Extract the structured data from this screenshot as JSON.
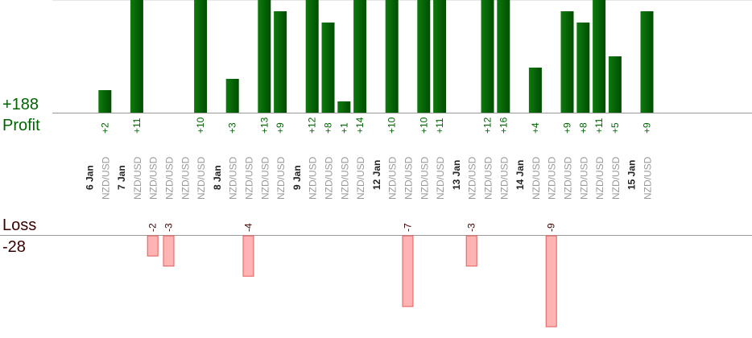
{
  "summary": {
    "profit_total": "+188",
    "profit_label": "Profit",
    "loss_label": "Loss",
    "loss_total": "-28"
  },
  "colors": {
    "profit_bar": "#0b6b0b",
    "profit_bar_dark": "#004d00",
    "profit_text": "#006400",
    "loss_bar": "#ffb3b3",
    "loss_bar_border": "#e05b5b",
    "loss_text": "#3a0000",
    "axis_line": "#888888",
    "date_text": "#222222",
    "instrument_text": "#999999"
  },
  "chart_data": {
    "type": "bar",
    "ylim_profit": [
      0,
      10
    ],
    "ylim_loss": [
      0,
      9
    ],
    "slots": [
      {
        "date": "6 Jan",
        "instrument": "",
        "profit": null,
        "loss": null
      },
      {
        "date": "",
        "instrument": "NZD/USD",
        "profit": 2,
        "label": "+2",
        "loss": null
      },
      {
        "date": "7 Jan",
        "instrument": "",
        "profit": null,
        "loss": null
      },
      {
        "date": "",
        "instrument": "NZD/USD",
        "profit": 11,
        "label": "+11",
        "loss": null
      },
      {
        "date": "",
        "instrument": "NZD/USD",
        "profit": null,
        "loss": 2,
        "label": "-2"
      },
      {
        "date": "",
        "instrument": "NZD/USD",
        "profit": null,
        "loss": 3,
        "label": "-3"
      },
      {
        "date": "",
        "instrument": "NZD/USD",
        "profit": null,
        "loss": null
      },
      {
        "date": "",
        "instrument": "NZD/USD",
        "profit": 10,
        "label": "+10",
        "loss": null
      },
      {
        "date": "8 Jan",
        "instrument": "",
        "profit": null,
        "loss": null
      },
      {
        "date": "",
        "instrument": "NZD/USD",
        "profit": 3,
        "label": "+3",
        "loss": null
      },
      {
        "date": "",
        "instrument": "NZD/USD",
        "profit": null,
        "loss": 4,
        "label": "-4"
      },
      {
        "date": "",
        "instrument": "NZD/USD",
        "profit": 13,
        "label": "+13",
        "loss": null
      },
      {
        "date": "",
        "instrument": "NZD/USD",
        "profit": 9,
        "label": "+9",
        "loss": null
      },
      {
        "date": "9 Jan",
        "instrument": "",
        "profit": null,
        "loss": null
      },
      {
        "date": "",
        "instrument": "NZD/USD",
        "profit": 12,
        "label": "+12",
        "loss": null
      },
      {
        "date": "",
        "instrument": "NZD/USD",
        "profit": 8,
        "label": "+8",
        "loss": null
      },
      {
        "date": "",
        "instrument": "NZD/USD",
        "profit": 1,
        "label": "+1",
        "loss": null
      },
      {
        "date": "",
        "instrument": "NZD/USD",
        "profit": 14,
        "label": "+14",
        "loss": null
      },
      {
        "date": "12 Jan",
        "instrument": "",
        "profit": null,
        "loss": null
      },
      {
        "date": "",
        "instrument": "NZD/USD",
        "profit": 10,
        "label": "+10",
        "loss": null
      },
      {
        "date": "",
        "instrument": "NZD/USD",
        "profit": null,
        "loss": 7,
        "label": "-7"
      },
      {
        "date": "",
        "instrument": "NZD/USD",
        "profit": 10,
        "label": "+10",
        "loss": null
      },
      {
        "date": "",
        "instrument": "NZD/USD",
        "profit": 11,
        "label": "+11",
        "loss": null
      },
      {
        "date": "13 Jan",
        "instrument": "",
        "profit": null,
        "loss": null
      },
      {
        "date": "",
        "instrument": "NZD/USD",
        "profit": null,
        "loss": 3,
        "label": "-3"
      },
      {
        "date": "",
        "instrument": "NZD/USD",
        "profit": 12,
        "label": "+12",
        "loss": null
      },
      {
        "date": "",
        "instrument": "NZD/USD",
        "profit": 16,
        "label": "+16",
        "loss": null
      },
      {
        "date": "14 Jan",
        "instrument": "",
        "profit": null,
        "loss": null
      },
      {
        "date": "",
        "instrument": "NZD/USD",
        "profit": 4,
        "label": "+4",
        "loss": null
      },
      {
        "date": "",
        "instrument": "NZD/USD",
        "profit": null,
        "loss": 9,
        "label": "-9"
      },
      {
        "date": "",
        "instrument": "NZD/USD",
        "profit": 9,
        "label": "+9",
        "loss": null
      },
      {
        "date": "",
        "instrument": "NZD/USD",
        "profit": 8,
        "label": "+8",
        "loss": null
      },
      {
        "date": "",
        "instrument": "NZD/USD",
        "profit": 11,
        "label": "+11",
        "loss": null
      },
      {
        "date": "",
        "instrument": "NZD/USD",
        "profit": 5,
        "label": "+5",
        "loss": null
      },
      {
        "date": "15 Jan",
        "instrument": "",
        "profit": null,
        "loss": null
      },
      {
        "date": "",
        "instrument": "NZD/USD",
        "profit": 9,
        "label": "+9",
        "loss": null
      }
    ]
  }
}
